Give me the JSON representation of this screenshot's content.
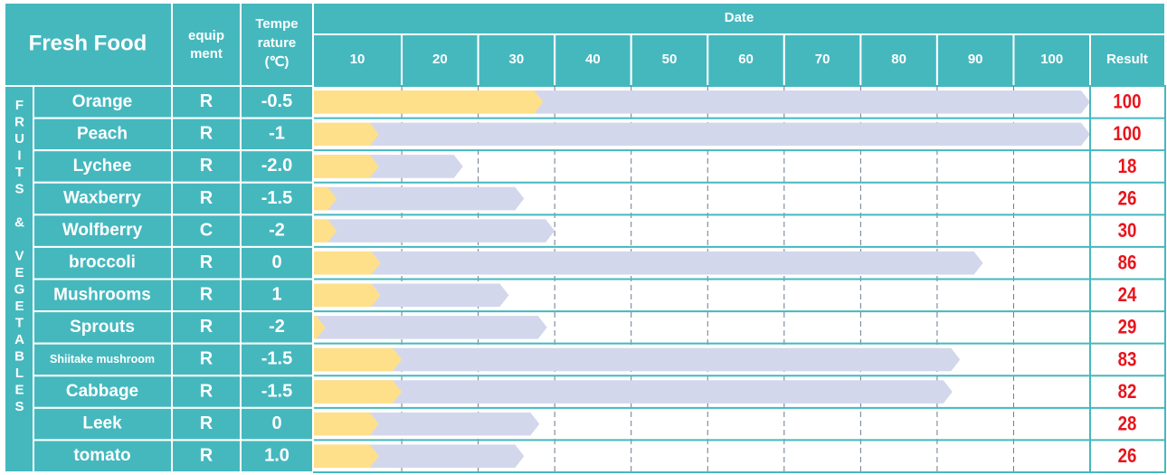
{
  "header": {
    "title": "Fresh Food",
    "equipment": [
      "equip",
      "ment"
    ],
    "temperature": [
      "Tempe",
      "rature",
      "(℃)"
    ],
    "date": "Date",
    "result": "Result"
  },
  "group": "FRUITS & VEGETABLES",
  "chart_data": {
    "type": "bar",
    "categories": [
      "Orange",
      "Peach",
      "Lychee",
      "Waxberry",
      "Wolfberry",
      "broccoli",
      "Mushrooms",
      "Sprouts",
      "Shiitake mushroom",
      "Cabbage",
      "Leek",
      "tomato"
    ],
    "equipment": [
      "R",
      "R",
      "R",
      "R",
      "C",
      "R",
      "R",
      "R",
      "R",
      "R",
      "R",
      "R"
    ],
    "temperature": [
      "-0.5",
      "-1",
      "-2.0",
      "-1.5",
      "-2",
      "0",
      "1",
      "-2",
      "-1.5",
      "-1.5",
      "0",
      "1.0"
    ],
    "values": [
      100,
      100,
      18,
      26,
      30,
      86,
      24,
      29,
      83,
      82,
      28,
      26
    ],
    "elapsed": [
      28.5,
      7,
      7,
      1.5,
      1.5,
      7.2,
      7.2,
      0,
      10,
      10,
      7,
      7
    ],
    "xlim": [
      -1.6,
      100
    ],
    "xticks": [
      10,
      20,
      30,
      40,
      50,
      60,
      70,
      80,
      90,
      100
    ],
    "color": "#d3d7ec",
    "elapsed_color": "#ffe08a",
    "header_color": "#45b8be",
    "value_color": "#e8141b"
  }
}
